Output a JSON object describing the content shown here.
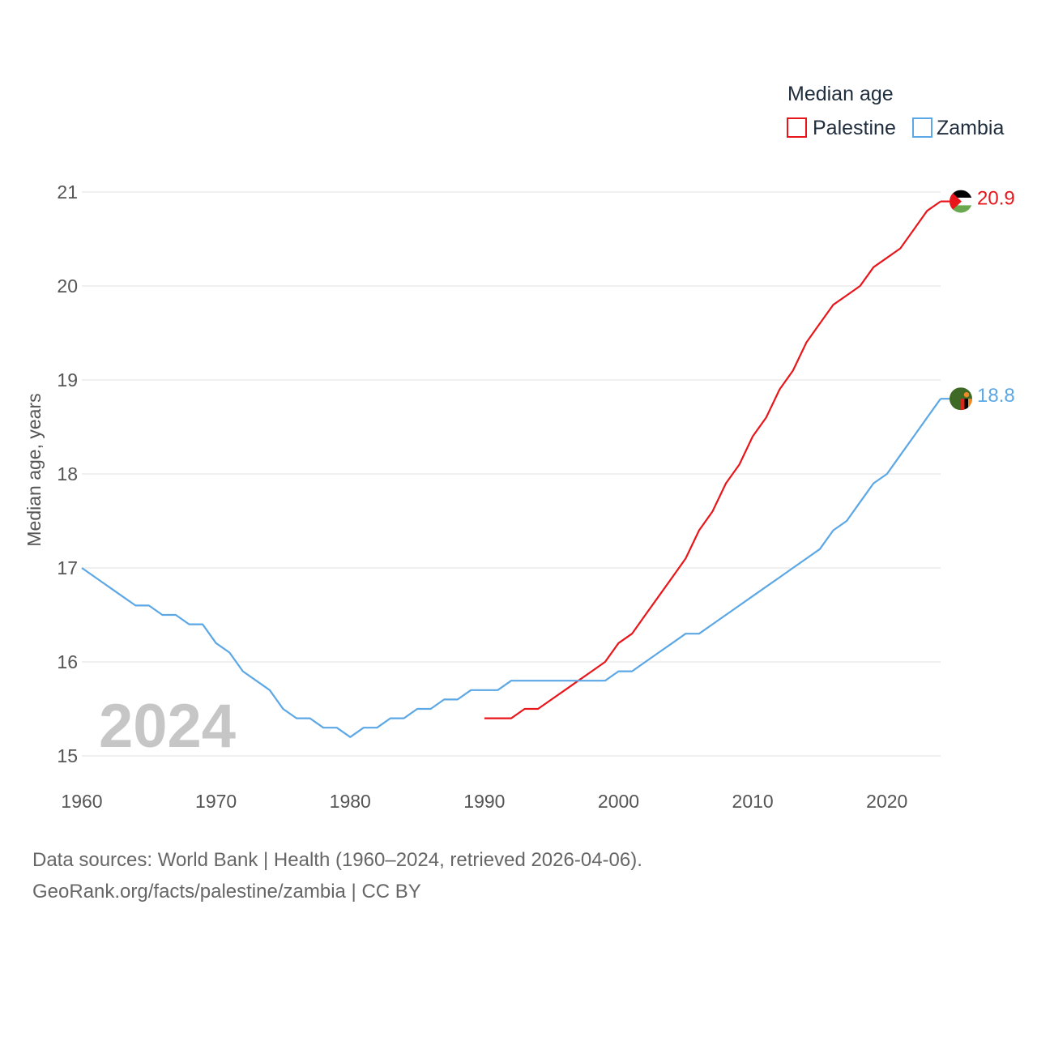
{
  "chart_data": {
    "type": "line",
    "title": "",
    "legend_title": "Median age",
    "legend_position": "top-right",
    "ylabel": "Median age, years",
    "xlabel": "",
    "xlim": [
      1960,
      2024
    ],
    "ylim": [
      15,
      21
    ],
    "x_ticks": [
      1960,
      1970,
      1980,
      1990,
      2000,
      2010,
      2020
    ],
    "y_ticks": [
      15,
      16,
      17,
      18,
      19,
      20,
      21
    ],
    "grid": true,
    "current_year_label": "2024",
    "series": [
      {
        "name": "Palestine",
        "color": "#e8161b",
        "end_value_label": "20.9",
        "flag_icon": "palestine-flag-icon",
        "x": [
          1990,
          1991,
          1992,
          1993,
          1994,
          1995,
          1996,
          1997,
          1998,
          1999,
          2000,
          2001,
          2002,
          2003,
          2004,
          2005,
          2006,
          2007,
          2008,
          2009,
          2010,
          2011,
          2012,
          2013,
          2014,
          2015,
          2016,
          2017,
          2018,
          2019,
          2020,
          2021,
          2022,
          2023,
          2024
        ],
        "values": [
          15.4,
          15.4,
          15.4,
          15.5,
          15.5,
          15.6,
          15.7,
          15.8,
          15.9,
          16.0,
          16.2,
          16.3,
          16.5,
          16.7,
          16.9,
          17.1,
          17.4,
          17.6,
          17.9,
          18.1,
          18.4,
          18.6,
          18.9,
          19.1,
          19.4,
          19.6,
          19.8,
          19.9,
          20.0,
          20.2,
          20.3,
          20.4,
          20.6,
          20.8,
          20.9
        ]
      },
      {
        "name": "Zambia",
        "color": "#5ca7e5",
        "end_value_label": "18.8",
        "flag_icon": "zambia-flag-icon",
        "x": [
          1960,
          1961,
          1962,
          1963,
          1964,
          1965,
          1966,
          1967,
          1968,
          1969,
          1970,
          1971,
          1972,
          1973,
          1974,
          1975,
          1976,
          1977,
          1978,
          1979,
          1980,
          1981,
          1982,
          1983,
          1984,
          1985,
          1986,
          1987,
          1988,
          1989,
          1990,
          1991,
          1992,
          1993,
          1994,
          1995,
          1996,
          1997,
          1998,
          1999,
          2000,
          2001,
          2002,
          2003,
          2004,
          2005,
          2006,
          2007,
          2008,
          2009,
          2010,
          2011,
          2012,
          2013,
          2014,
          2015,
          2016,
          2017,
          2018,
          2019,
          2020,
          2021,
          2022,
          2023,
          2024
        ],
        "values": [
          17.0,
          16.9,
          16.8,
          16.7,
          16.6,
          16.6,
          16.5,
          16.5,
          16.4,
          16.4,
          16.2,
          16.1,
          15.9,
          15.8,
          15.7,
          15.5,
          15.4,
          15.4,
          15.3,
          15.3,
          15.2,
          15.3,
          15.3,
          15.4,
          15.4,
          15.5,
          15.5,
          15.6,
          15.6,
          15.7,
          15.7,
          15.7,
          15.8,
          15.8,
          15.8,
          15.8,
          15.8,
          15.8,
          15.8,
          15.8,
          15.9,
          15.9,
          16.0,
          16.1,
          16.2,
          16.3,
          16.3,
          16.4,
          16.5,
          16.6,
          16.7,
          16.8,
          16.9,
          17.0,
          17.1,
          17.2,
          17.4,
          17.5,
          17.7,
          17.9,
          18.0,
          18.2,
          18.4,
          18.6,
          18.8
        ]
      }
    ]
  },
  "footer": {
    "line1": "Data sources: World Bank | Health (1960–2024, retrieved 2026-04-06).",
    "line2": "GeoRank.org/facts/palestine/zambia | CC BY"
  }
}
